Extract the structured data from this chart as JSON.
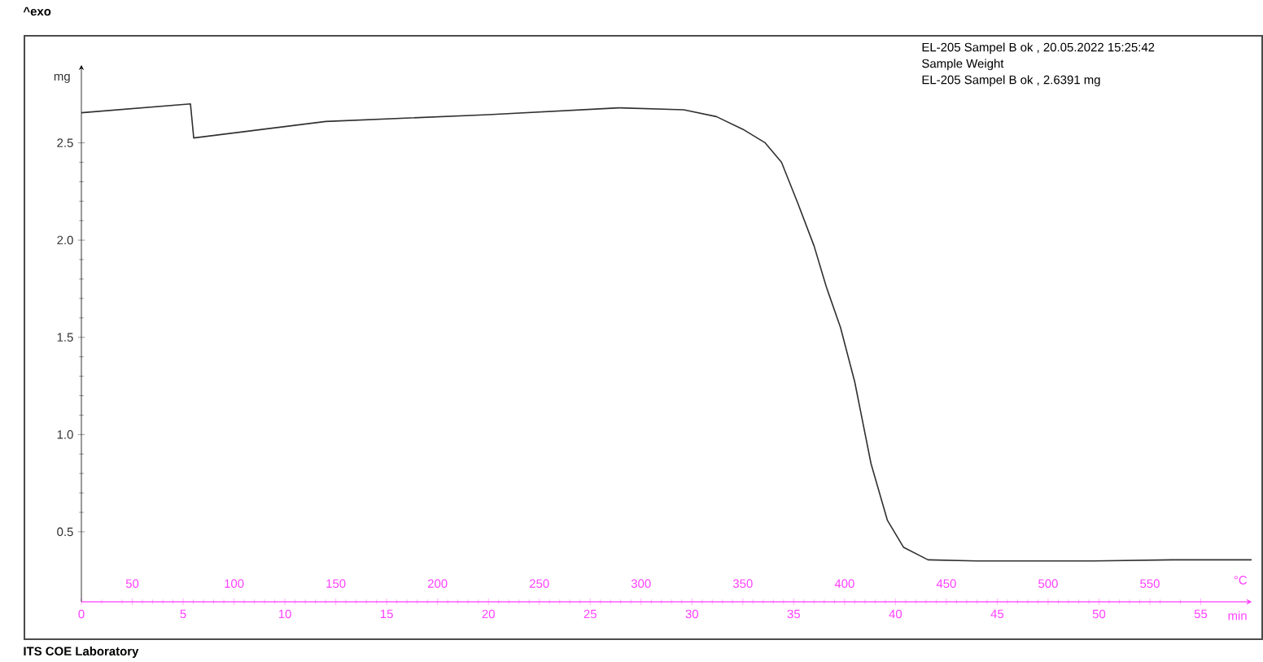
{
  "chart_data": {
    "type": "line",
    "ylabel": "mg",
    "xlabel": "min",
    "x2label": "°C",
    "color": "#303030",
    "x": [
      0,
      5.36,
      5.52,
      12.0,
      20.0,
      26.4,
      29.6,
      31.2,
      32.5,
      33.6,
      34.4,
      35.2,
      36.0,
      36.6,
      37.3,
      38.0,
      38.8,
      39.6,
      40.4,
      41.6,
      44.0,
      49.7,
      53.6,
      57.5
    ],
    "values": [
      2.655,
      2.7,
      2.525,
      2.61,
      2.645,
      2.68,
      2.67,
      2.635,
      2.57,
      2.5,
      2.4,
      2.19,
      1.97,
      1.76,
      1.55,
      1.27,
      0.85,
      0.56,
      0.42,
      0.356,
      0.35,
      0.35,
      0.356,
      0.356
    ],
    "xlim": [
      0,
      57.5
    ],
    "xticks": [
      0,
      5,
      10,
      15,
      20,
      25,
      30,
      35,
      40,
      45,
      50,
      55
    ],
    "x2lim": [
      25,
      600
    ],
    "x2ticks": [
      50,
      100,
      150,
      200,
      250,
      300,
      350,
      400,
      450,
      500,
      550
    ],
    "ylim": [
      0.14,
      2.9
    ],
    "yticks": [
      {
        "value": 0.5,
        "label": "0.5"
      },
      {
        "value": 1.0,
        "label": "1.0"
      },
      {
        "value": 1.5,
        "label": "1.5"
      },
      {
        "value": 2.0,
        "label": "2.0"
      },
      {
        "value": 2.5,
        "label": "2.5"
      }
    ],
    "grid": false,
    "annotations": [
      "EL-205 Sampel B ok , 20.05.2022 15:25:42",
      "Sample Weight",
      "EL-205 Sampel B ok , 2.6391 mg",
      "^exo",
      "ITS COE Laboratory"
    ]
  }
}
